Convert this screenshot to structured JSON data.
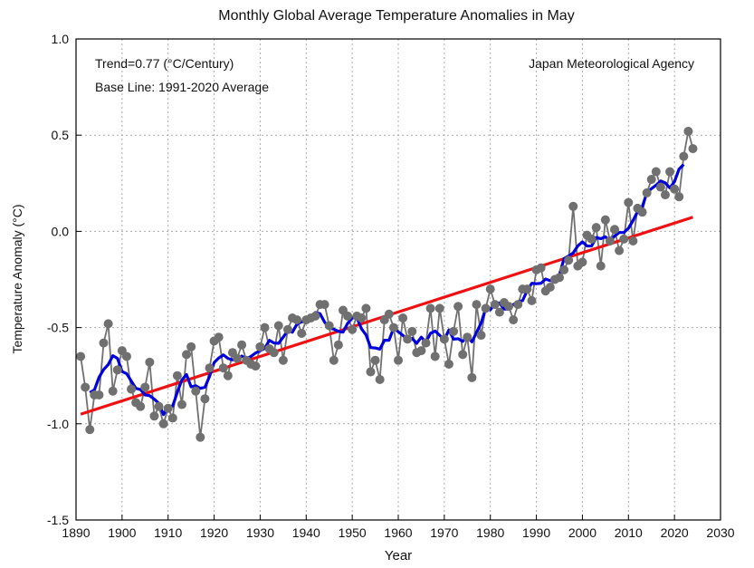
{
  "chart_data": {
    "type": "line",
    "title": "Monthly Global Average Temperature Anomalies in May",
    "xlabel": "Year",
    "ylabel": "Temperature Anomaly (°C)",
    "xlim": [
      1890,
      2030
    ],
    "ylim": [
      -1.5,
      1.0
    ],
    "xticks": [
      1890,
      1900,
      1910,
      1920,
      1930,
      1940,
      1950,
      1960,
      1970,
      1980,
      1990,
      2000,
      2010,
      2020,
      2030
    ],
    "yticks": [
      -1.5,
      -1.0,
      -0.5,
      0.0,
      0.5,
      1.0
    ],
    "ytick_labels": [
      "-1.5",
      "-1.0",
      "-0.5",
      "0.0",
      "0.5",
      "1.0"
    ],
    "grid": true,
    "annotations": {
      "trend": "Trend=0.77 (°C/Century)",
      "baseline": "Base Line: 1991-2020 Average",
      "source": "Japan Meteorological Agency"
    },
    "series": [
      {
        "role": "annual anomaly",
        "color": "#707070",
        "x_start": 1891,
        "values": [
          -0.65,
          -0.81,
          -1.03,
          -0.85,
          -0.85,
          -0.58,
          -0.48,
          -0.83,
          -0.72,
          -0.62,
          -0.65,
          -0.82,
          -0.89,
          -0.91,
          -0.81,
          -0.68,
          -0.96,
          -0.91,
          -1.0,
          -0.92,
          -0.97,
          -0.75,
          -0.9,
          -0.64,
          -0.6,
          -0.83,
          -1.07,
          -0.87,
          -0.71,
          -0.57,
          -0.55,
          -0.71,
          -0.75,
          -0.63,
          -0.66,
          -0.59,
          -0.67,
          -0.69,
          -0.7,
          -0.6,
          -0.5,
          -0.61,
          -0.63,
          -0.49,
          -0.67,
          -0.51,
          -0.45,
          -0.46,
          -0.53,
          -0.46,
          -0.45,
          -0.44,
          -0.38,
          -0.38,
          -0.49,
          -0.67,
          -0.59,
          -0.41,
          -0.44,
          -0.51,
          -0.44,
          -0.45,
          -0.4,
          -0.73,
          -0.67,
          -0.77,
          -0.46,
          -0.43,
          -0.5,
          -0.67,
          -0.45,
          -0.56,
          -0.52,
          -0.63,
          -0.62,
          -0.58,
          -0.4,
          -0.65,
          -0.4,
          -0.56,
          -0.69,
          -0.52,
          -0.39,
          -0.64,
          -0.55,
          -0.76,
          -0.38,
          -0.54,
          -0.4,
          -0.3,
          -0.38,
          -0.42,
          -0.37,
          -0.39,
          -0.46,
          -0.38,
          -0.3,
          -0.3,
          -0.36,
          -0.2,
          -0.19,
          -0.31,
          -0.29,
          -0.25,
          -0.24,
          -0.2,
          -0.15,
          0.13,
          -0.18,
          -0.16,
          -0.02,
          -0.04,
          0.02,
          -0.18,
          0.06,
          -0.05,
          0.01,
          -0.1,
          -0.04,
          0.15,
          -0.05,
          0.12,
          0.1,
          0.2,
          0.27,
          0.31,
          0.23,
          0.19,
          0.31,
          0.22,
          0.18,
          0.39,
          0.52,
          0.43
        ]
      },
      {
        "role": "5-year running mean",
        "color": "#0000dd"
      },
      {
        "role": "long-term linear trend",
        "color": "#ee1111",
        "slope_per_century": 0.77
      }
    ]
  }
}
